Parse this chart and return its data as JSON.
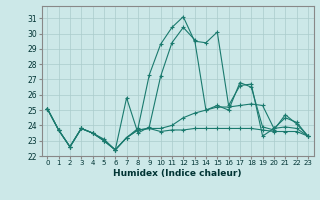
{
  "title": "",
  "xlabel": "Humidex (Indice chaleur)",
  "ylabel": "",
  "background_color": "#cce8e8",
  "grid_color": "#aacccc",
  "line_color": "#1a7a6e",
  "xlim": [
    -0.5,
    23.5
  ],
  "ylim": [
    22,
    31.8
  ],
  "yticks": [
    22,
    23,
    24,
    25,
    26,
    27,
    28,
    29,
    30,
    31
  ],
  "xticks": [
    0,
    1,
    2,
    3,
    4,
    5,
    6,
    7,
    8,
    9,
    10,
    11,
    12,
    13,
    14,
    15,
    16,
    17,
    18,
    19,
    20,
    21,
    22,
    23
  ],
  "series": [
    [
      25.1,
      23.7,
      22.6,
      23.8,
      23.5,
      23.1,
      22.4,
      23.2,
      23.8,
      27.3,
      29.3,
      30.4,
      31.1,
      29.5,
      29.4,
      30.1,
      25.3,
      26.6,
      26.7,
      23.3,
      23.8,
      24.5,
      24.2,
      23.3
    ],
    [
      25.1,
      23.7,
      22.6,
      23.8,
      23.5,
      23.0,
      22.4,
      25.8,
      23.5,
      23.9,
      27.2,
      29.4,
      30.4,
      29.6,
      25.0,
      25.3,
      25.0,
      26.8,
      26.5,
      23.9,
      23.7,
      24.7,
      24.1,
      23.3
    ],
    [
      25.1,
      23.7,
      22.6,
      23.8,
      23.5,
      23.0,
      22.4,
      23.2,
      23.7,
      23.8,
      23.8,
      24.0,
      24.5,
      24.8,
      25.0,
      25.2,
      25.2,
      25.3,
      25.4,
      25.3,
      23.8,
      23.9,
      23.8,
      23.3
    ],
    [
      25.1,
      23.7,
      22.6,
      23.8,
      23.5,
      23.0,
      22.4,
      23.2,
      23.7,
      23.8,
      23.6,
      23.7,
      23.7,
      23.8,
      23.8,
      23.8,
      23.8,
      23.8,
      23.8,
      23.7,
      23.6,
      23.6,
      23.6,
      23.3
    ]
  ]
}
